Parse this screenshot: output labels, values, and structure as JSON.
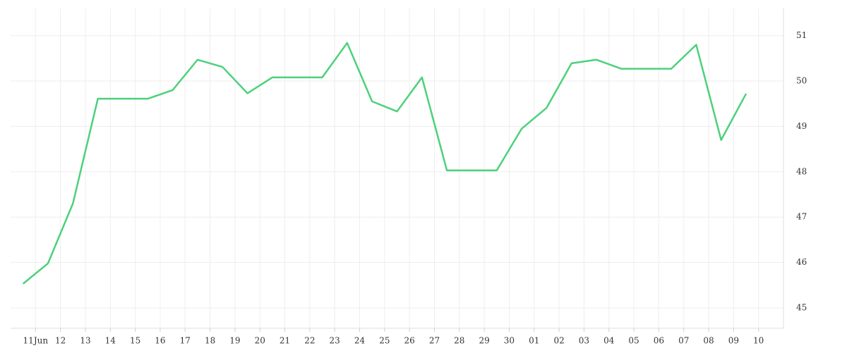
{
  "chart_data": {
    "type": "line",
    "x": [
      -0.5,
      0.5,
      1.5,
      2.5,
      3.5,
      4.5,
      5.5,
      6.5,
      7.5,
      8.5,
      9.5,
      10.5,
      11.5,
      12.5,
      13.5,
      14.5,
      15.5,
      16.5,
      17.5,
      18.5,
      19.5,
      20.5,
      21.5,
      22.5,
      23.5,
      24.5,
      25.5,
      26.5,
      27.5,
      28.5
    ],
    "series": [
      {
        "color": "#4cd17a",
        "values": [
          45.53,
          45.98,
          47.3,
          49.61,
          49.61,
          49.61,
          49.8,
          50.47,
          50.31,
          49.73,
          50.08,
          50.08,
          50.08,
          50.84,
          49.55,
          49.33,
          50.08,
          48.03,
          48.03,
          48.03,
          48.95,
          49.41,
          50.39,
          50.47,
          50.27,
          50.27,
          50.27,
          50.8,
          48.7,
          49.72
        ]
      }
    ],
    "xlim": [
      -1,
      30
    ],
    "xticks": [
      {
        "value": 0,
        "label": "11Jun"
      },
      {
        "value": 1,
        "label": "12"
      },
      {
        "value": 2,
        "label": "13"
      },
      {
        "value": 3,
        "label": "14"
      },
      {
        "value": 4,
        "label": "15"
      },
      {
        "value": 5,
        "label": "16"
      },
      {
        "value": 6,
        "label": "17"
      },
      {
        "value": 7,
        "label": "18"
      },
      {
        "value": 8,
        "label": "19"
      },
      {
        "value": 9,
        "label": "20"
      },
      {
        "value": 10,
        "label": "21"
      },
      {
        "value": 11,
        "label": "22"
      },
      {
        "value": 12,
        "label": "23"
      },
      {
        "value": 13,
        "label": "24"
      },
      {
        "value": 14,
        "label": "25"
      },
      {
        "value": 15,
        "label": "26"
      },
      {
        "value": 16,
        "label": "27"
      },
      {
        "value": 17,
        "label": "28"
      },
      {
        "value": 18,
        "label": "29"
      },
      {
        "value": 19,
        "label": "30"
      },
      {
        "value": 20,
        "label": "01"
      },
      {
        "value": 21,
        "label": "02"
      },
      {
        "value": 22,
        "label": "03"
      },
      {
        "value": 23,
        "label": "04"
      },
      {
        "value": 24,
        "label": "05"
      },
      {
        "value": 25,
        "label": "06"
      },
      {
        "value": 26,
        "label": "07"
      },
      {
        "value": 27,
        "label": "08"
      },
      {
        "value": 28,
        "label": "09"
      },
      {
        "value": 29,
        "label": "10"
      }
    ],
    "ylim": [
      44.55,
      51.6
    ],
    "yticks": [
      45,
      46,
      47,
      48,
      49,
      50,
      51
    ],
    "grid": true
  }
}
